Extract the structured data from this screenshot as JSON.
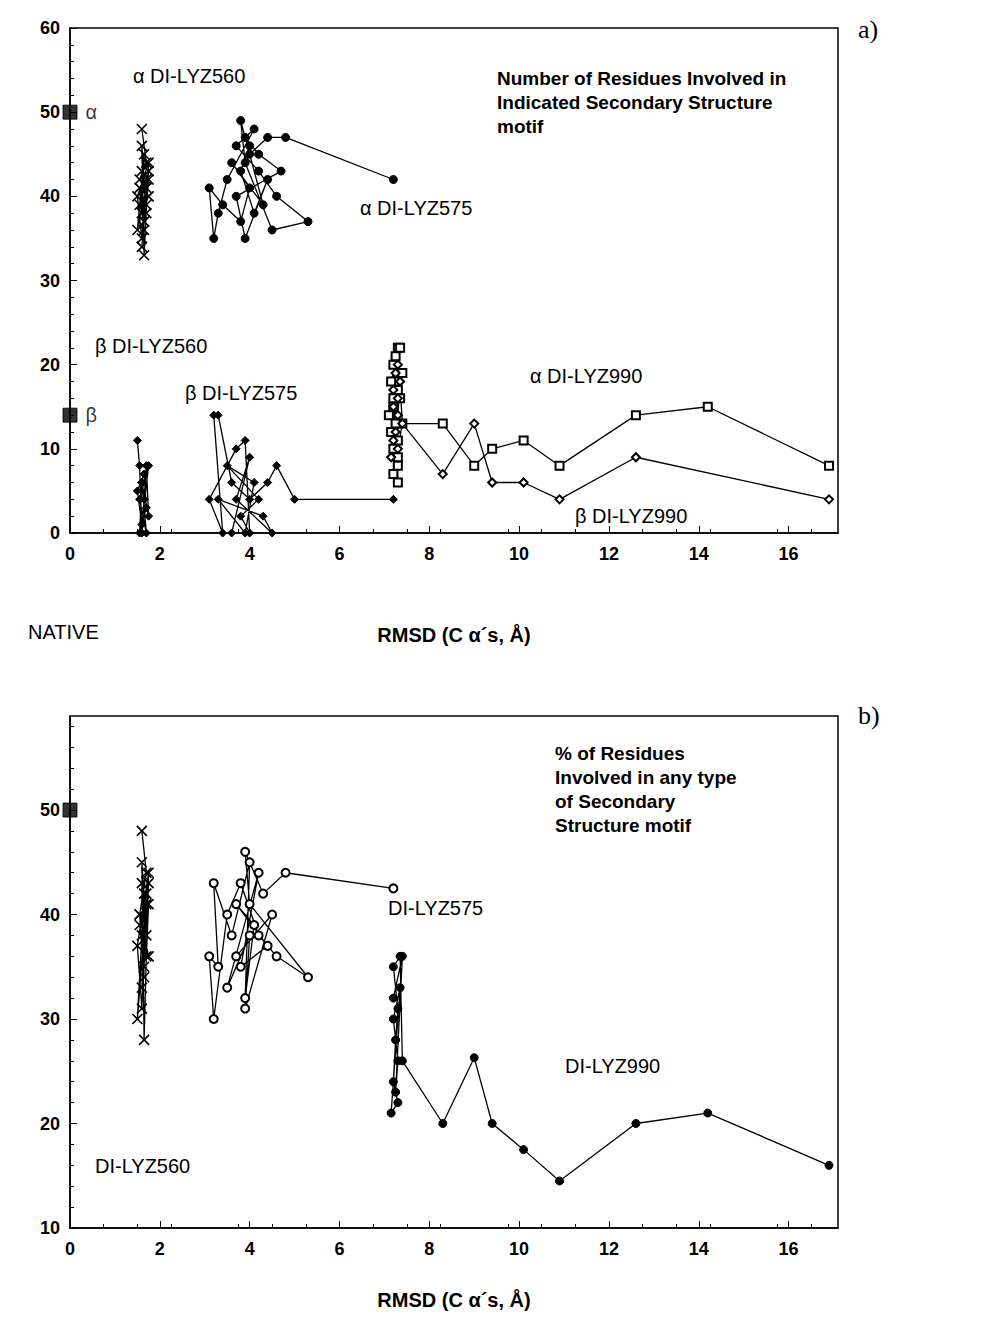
{
  "chart_data": [
    {
      "type": "line",
      "title": "Number of Residues Involved in Indicated Secondary Structure motif",
      "annotations": [
        "a)"
      ],
      "x_label": "RMSD (C α´s, Å)",
      "xlim": [
        0,
        17.1
      ],
      "xticks": [
        0,
        2,
        4,
        6,
        8,
        10,
        12,
        14,
        16
      ],
      "ylim": [
        0,
        60
      ],
      "yticks": [
        0,
        10,
        20,
        30,
        40,
        50,
        60
      ],
      "grid": false,
      "color": "#000000",
      "series": [
        {
          "name": "α DI-LYZ560",
          "marker": "x",
          "line_style": "solid",
          "x": [
            1.6,
            1.7,
            1.55,
            1.75,
            1.6,
            1.65,
            1.5,
            1.7,
            1.6,
            1.75,
            1.55,
            1.65,
            1.7,
            1.6,
            1.5,
            1.75,
            1.65,
            1.6,
            1.7,
            1.55,
            1.65,
            1.6,
            1.7,
            1.75
          ],
          "values": [
            48,
            44,
            42,
            40,
            38,
            45,
            36,
            41,
            34,
            43,
            39,
            37,
            42,
            35,
            40,
            44,
            33,
            46,
            38,
            41,
            36,
            43,
            39,
            42
          ]
        },
        {
          "name": "α DI-LYZ575",
          "marker": "circle",
          "line_style": "solid",
          "x": [
            7.2,
            4.8,
            4.4,
            4.0,
            3.8,
            3.9,
            4.5,
            5.3,
            4.6,
            4.2,
            3.7,
            4.1,
            3.5,
            3.3,
            3.2,
            3.1,
            3.4,
            3.8,
            4.0,
            3.6,
            4.3,
            3.9,
            4.2,
            4.7,
            3.7,
            3.9,
            4.4,
            4.1,
            3.8,
            4.0
          ],
          "values": [
            42,
            47,
            47,
            45,
            49,
            44,
            36,
            37,
            40,
            43,
            46,
            48,
            42,
            38,
            35,
            41,
            39,
            37,
            41,
            44,
            39,
            47,
            45,
            43,
            40,
            35,
            42,
            38,
            43,
            46
          ]
        },
        {
          "name": "β DI-LYZ560",
          "marker": "diamond",
          "line_style": "solid",
          "x": [
            1.5,
            1.55,
            1.6,
            1.65,
            1.7,
            1.75,
            1.6,
            1.55,
            1.7,
            1.65,
            1.5,
            1.6,
            1.75,
            1.55,
            1.7,
            1.6
          ],
          "values": [
            11,
            8,
            0,
            4,
            8,
            2,
            6,
            0,
            3,
            7,
            5,
            1,
            8,
            4,
            0,
            6
          ]
        },
        {
          "name": "β DI-LYZ575",
          "marker": "diamond",
          "line_style": "solid",
          "x": [
            7.2,
            5.0,
            4.6,
            4.4,
            4.0,
            3.6,
            3.3,
            3.2,
            3.4,
            3.1,
            3.7,
            3.9,
            4.0,
            3.8,
            4.2,
            3.5,
            4.1,
            3.9,
            3.3,
            4.3,
            4.5,
            3.7,
            4.0,
            3.6
          ],
          "values": [
            4,
            4,
            8,
            6,
            4,
            6,
            14,
            14,
            0,
            4,
            10,
            11,
            0,
            2,
            4,
            8,
            6,
            0,
            4,
            2,
            0,
            4,
            9,
            0
          ]
        },
        {
          "name": "α DI-LYZ990",
          "marker": "square_open",
          "line_style": "solid",
          "x": [
            16.9,
            14.2,
            12.6,
            10.9,
            10.1,
            9.4,
            9.0,
            8.3,
            7.4,
            7.3,
            7.25,
            7.2,
            7.3,
            7.2,
            7.35,
            7.15,
            7.3,
            7.2,
            7.25,
            7.1,
            7.3,
            7.4,
            7.2,
            7.3,
            7.25,
            7.15,
            7.35,
            7.2,
            7.3
          ],
          "values": [
            8,
            15,
            14,
            8,
            11,
            10,
            8,
            13,
            13,
            22,
            18,
            15,
            11,
            20,
            16,
            12,
            9,
            7,
            21,
            14,
            17,
            19,
            10,
            6,
            13,
            18,
            22,
            16,
            8
          ]
        },
        {
          "name": "β DI-LYZ990",
          "marker": "diamond_open",
          "line_style": "solid",
          "x": [
            16.9,
            12.6,
            10.9,
            10.1,
            9.4,
            9.0,
            8.3,
            7.4,
            7.3,
            7.2,
            7.25,
            7.3,
            7.2,
            7.35,
            7.15,
            7.3,
            7.25,
            7.2,
            7.3
          ],
          "values": [
            4,
            9,
            4,
            6,
            6,
            13,
            7,
            13,
            10,
            17,
            12,
            20,
            15,
            18,
            9,
            14,
            19,
            11,
            16
          ]
        },
        {
          "marker": "square",
          "line_style": "none",
          "data_labels": true,
          "x": [
            0,
            0
          ],
          "values": [
            50,
            14
          ],
          "value_labels": [
            "α",
            "β"
          ]
        }
      ]
    },
    {
      "type": "line",
      "title": "% of Residues Involved in any type of Secondary Structure motif",
      "annotations": [
        "b)"
      ],
      "x_label": "RMSD (C α´s, Å)",
      "xlim": [
        0,
        17.1
      ],
      "xticks": [
        0,
        2,
        4,
        6,
        8,
        10,
        12,
        14,
        16
      ],
      "ylim": [
        10,
        59
      ],
      "yticks": [
        10,
        20,
        30,
        40,
        50
      ],
      "grid": false,
      "color": "#000000",
      "series": [
        {
          "name": "DI-LYZ560",
          "marker": "x",
          "line_style": "solid",
          "x": [
            1.6,
            1.7,
            1.55,
            1.75,
            1.6,
            1.65,
            1.5,
            1.7,
            1.6,
            1.75,
            1.55,
            1.65,
            1.7,
            1.6,
            1.5,
            1.75,
            1.65,
            1.6,
            1.7,
            1.55,
            1.65,
            1.6,
            1.7,
            1.75
          ],
          "values": [
            48,
            44,
            40,
            36,
            38,
            42,
            30,
            41,
            33,
            43,
            39,
            35,
            42,
            31,
            37,
            44,
            28,
            45,
            38,
            40,
            34,
            43,
            36,
            41
          ]
        },
        {
          "name": "DI-LYZ575",
          "marker": "circle_open",
          "line_style": "solid",
          "x": [
            7.2,
            4.8,
            4.3,
            3.9,
            4.0,
            5.3,
            4.6,
            4.2,
            3.8,
            3.5,
            3.2,
            3.1,
            3.3,
            3.2,
            3.6,
            4.0,
            3.9,
            4.1,
            3.7,
            4.4,
            3.8,
            4.2,
            3.5,
            4.0,
            3.9,
            4.5,
            3.7
          ],
          "values": [
            42.5,
            44,
            42,
            46,
            41,
            34,
            36,
            38,
            43,
            40,
            30,
            36,
            35,
            43,
            38,
            45,
            32,
            39,
            41,
            37,
            35,
            44,
            33,
            38,
            31,
            40,
            36
          ]
        },
        {
          "name": "DI-LYZ990",
          "marker": "circle",
          "line_style": "solid",
          "x": [
            16.9,
            14.2,
            12.6,
            10.9,
            10.1,
            9.4,
            9.0,
            8.3,
            7.4,
            7.35,
            7.2,
            7.3,
            7.25,
            7.2,
            7.3,
            7.15,
            7.35,
            7.2,
            7.3,
            7.25,
            7.4,
            7.2
          ],
          "values": [
            16,
            21,
            20,
            14.5,
            17.5,
            20,
            26.3,
            20,
            26,
            36,
            35,
            31,
            28,
            24,
            22,
            21,
            33,
            30,
            26,
            23,
            36,
            32
          ]
        },
        {
          "name": "NATIVE",
          "marker": "square",
          "line_style": "none",
          "x": [
            0
          ],
          "values": [
            50
          ]
        }
      ]
    }
  ]
}
